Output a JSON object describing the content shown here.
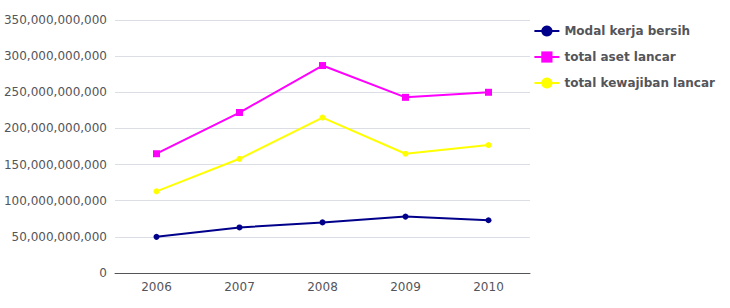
{
  "chart_data": {
    "type": "line",
    "categories": [
      "2006",
      "2007",
      "2008",
      "2009",
      "2010"
    ],
    "series": [
      {
        "name": "Modal kerja bersih",
        "color": "#00008B",
        "marker": "circle",
        "values": [
          50000000000,
          63000000000,
          70000000000,
          78000000000,
          73000000000
        ]
      },
      {
        "name": "total aset lancar",
        "color": "#FF00FF",
        "marker": "square",
        "values": [
          165000000000,
          222000000000,
          287000000000,
          243000000000,
          250000000000
        ]
      },
      {
        "name": "total kewajiban lancar",
        "color": "#FFFF00",
        "marker": "circle",
        "values": [
          113000000000,
          158000000000,
          215000000000,
          165000000000,
          177000000000
        ]
      }
    ],
    "ylim": [
      0,
      350000000000
    ],
    "yticks": [
      0,
      {
        "value": 50000000000,
        "label": "50,000,000,000"
      },
      {
        "value": 100000000000,
        "label": "100,000,000,000"
      },
      {
        "value": 150000000000,
        "label": "150,000,000,000"
      },
      {
        "value": 200000000000,
        "label": "200,000,000,000"
      },
      {
        "value": 250000000000,
        "label": "250,000,000,000"
      },
      {
        "value": 300000000000,
        "label": "300,000,000,000"
      },
      {
        "value": 350000000000,
        "label": "350,000,000,000"
      }
    ],
    "grid": true,
    "legend": "right"
  }
}
